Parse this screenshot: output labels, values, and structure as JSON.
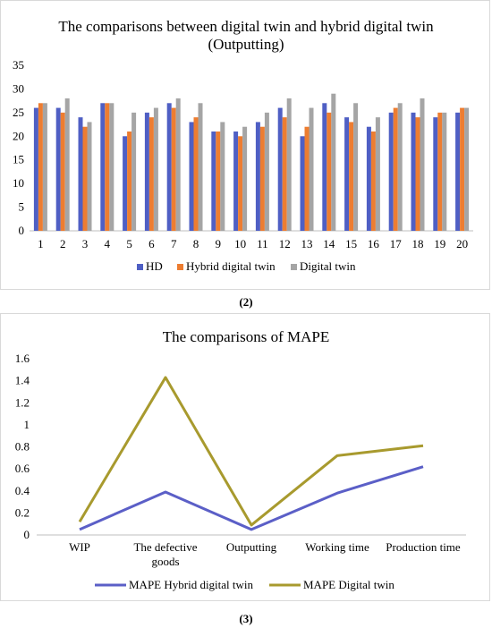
{
  "chart_data": [
    {
      "type": "bar",
      "title_line1": "The comparisons between digital twin and hybrid digital twin",
      "title_line2": "(Outputting)",
      "categories": [
        "1",
        "2",
        "3",
        "4",
        "5",
        "6",
        "7",
        "8",
        "9",
        "10",
        "11",
        "12",
        "13",
        "14",
        "15",
        "16",
        "17",
        "18",
        "19",
        "20"
      ],
      "series": [
        {
          "name": "HD",
          "color": "#4f5fc4",
          "values": [
            26,
            26,
            24,
            27,
            20,
            25,
            27,
            23,
            21,
            21,
            23,
            26,
            20,
            27,
            24,
            22,
            25,
            25,
            24,
            25
          ]
        },
        {
          "name": "Hybrid digital twin",
          "color": "#ed7d31",
          "values": [
            27,
            25,
            22,
            27,
            21,
            24,
            26,
            24,
            21,
            20,
            22,
            24,
            22,
            25,
            23,
            21,
            26,
            24,
            25,
            26
          ]
        },
        {
          "name": "Digital twin",
          "color": "#a5a5a5",
          "values": [
            27,
            28,
            23,
            27,
            25,
            26,
            28,
            27,
            23,
            22,
            25,
            28,
            26,
            29,
            27,
            24,
            27,
            28,
            25,
            26
          ]
        }
      ],
      "ylim": [
        0,
        35
      ],
      "yticks": [
        0,
        5,
        10,
        15,
        20,
        25,
        30,
        35
      ],
      "legend": "bottom",
      "grid": false
    },
    {
      "type": "line",
      "title": "The comparisons of MAPE",
      "categories": [
        "WIP",
        "The defective goods",
        "Outputting",
        "Working time",
        "Production time"
      ],
      "category_lines": [
        [
          "WIP"
        ],
        [
          "The defective",
          "goods"
        ],
        [
          "Outputting"
        ],
        [
          "Working time"
        ],
        [
          "Production time"
        ]
      ],
      "series": [
        {
          "name": "MAPE Hybrid digital twin",
          "color": "#5b5fc7",
          "values": [
            0.05,
            0.39,
            0.05,
            0.38,
            0.62
          ]
        },
        {
          "name": "MAPE Digital twin",
          "color": "#a89a2e",
          "values": [
            0.12,
            1.43,
            0.09,
            0.72,
            0.81
          ]
        }
      ],
      "ylim": [
        0,
        1.6
      ],
      "yticks": [
        "0",
        "0.2",
        "0.4",
        "0.6",
        "0.8",
        "1",
        "1.2",
        "1.4",
        "1.6"
      ],
      "legend": "bottom",
      "grid": false
    }
  ],
  "captions": {
    "first": "(2)",
    "second": "(3)"
  }
}
